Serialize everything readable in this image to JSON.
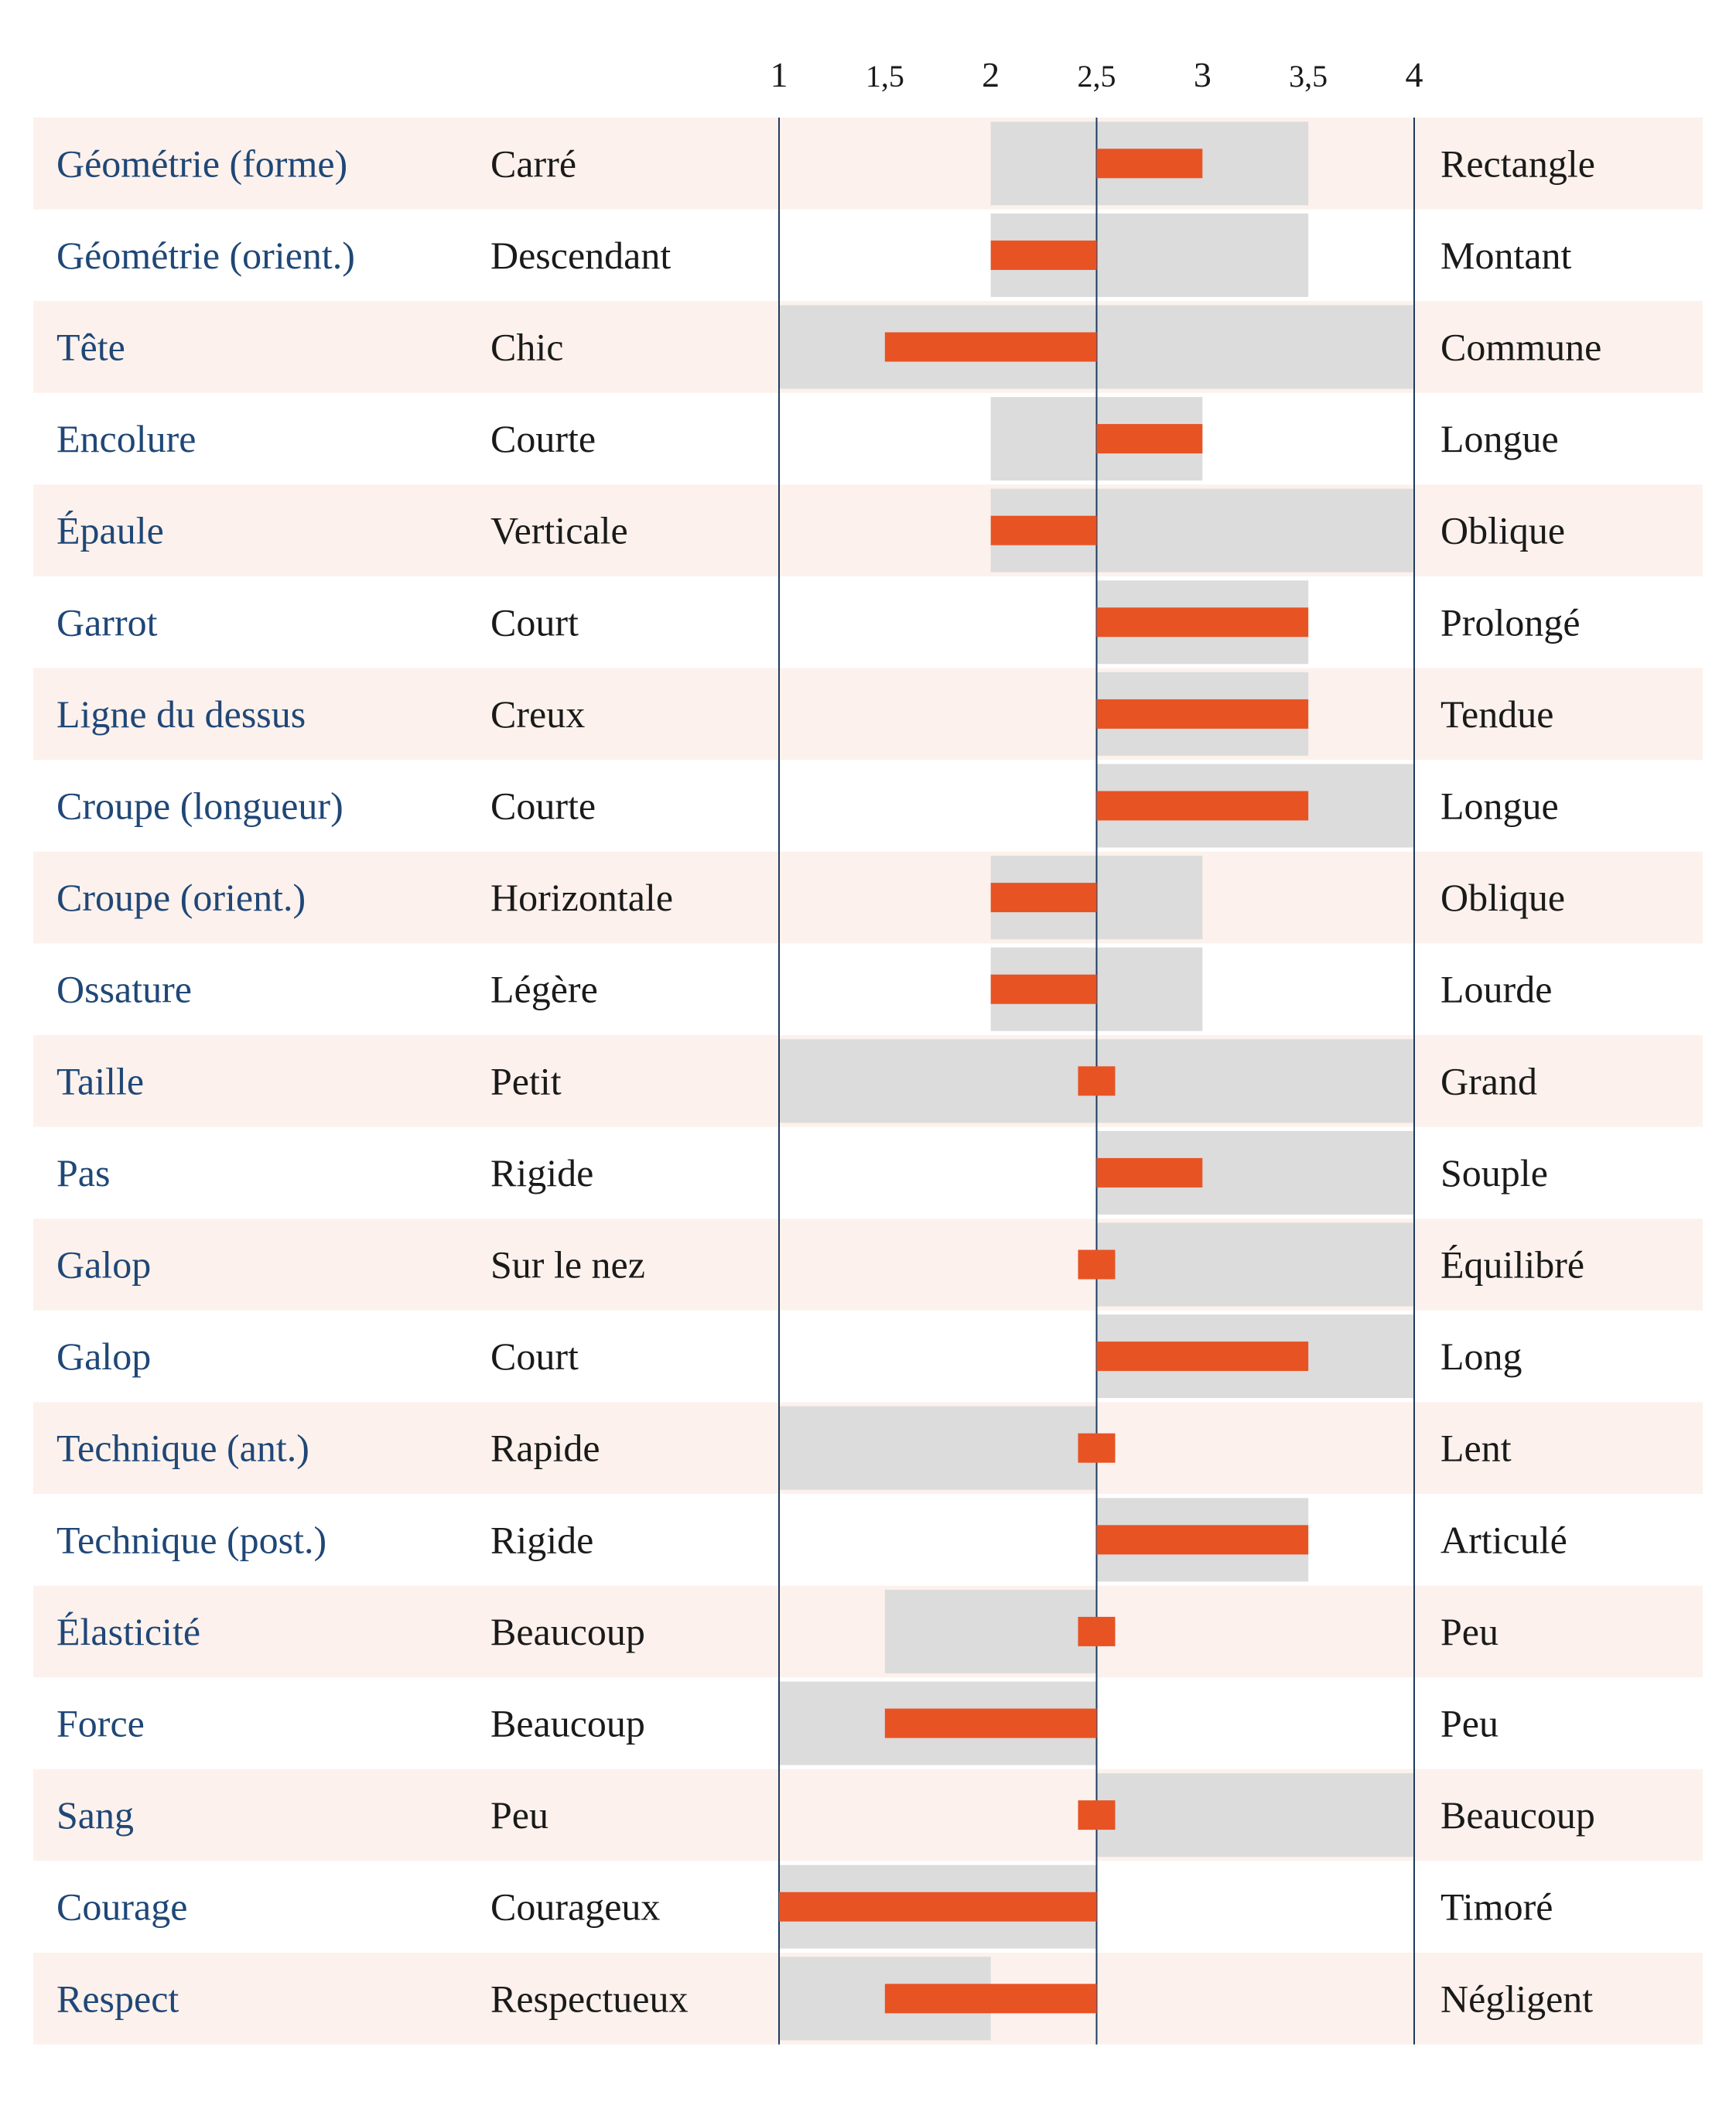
{
  "colors": {
    "row_band": "#fcf1ec",
    "range": "#dcdcdc",
    "marker": "#e85324",
    "axis_line": "#1f3a5f",
    "trait_text": "#1f4777",
    "pole_text": "#1a1a1a"
  },
  "chart_data": {
    "type": "bar",
    "orientation": "horizontal",
    "title": "",
    "xlim": [
      1,
      4
    ],
    "center": 2.5,
    "ticks": [
      {
        "value": 1,
        "label": "1"
      },
      {
        "value": 1.5,
        "label": "1,5"
      },
      {
        "value": 2,
        "label": "2"
      },
      {
        "value": 2.5,
        "label": "2,5"
      },
      {
        "value": 3,
        "label": "3"
      },
      {
        "value": 3.5,
        "label": "3,5"
      },
      {
        "value": 4,
        "label": "4"
      }
    ],
    "rows": [
      {
        "trait": "Géométrie (forme)",
        "low": "Carré",
        "high": "Rectangle",
        "range": [
          2,
          3.5
        ],
        "value": 3
      },
      {
        "trait": "Géométrie (orient.)",
        "low": "Descendant",
        "high": "Montant",
        "range": [
          2,
          3.5
        ],
        "value": 2
      },
      {
        "trait": "Tête",
        "low": "Chic",
        "high": "Commune",
        "range": [
          1,
          4
        ],
        "value": 1.5
      },
      {
        "trait": "Encolure",
        "low": "Courte",
        "high": "Longue",
        "range": [
          2,
          3
        ],
        "value": 3
      },
      {
        "trait": "Épaule",
        "low": "Verticale",
        "high": "Oblique",
        "range": [
          2,
          4
        ],
        "value": 2
      },
      {
        "trait": "Garrot",
        "low": "Court",
        "high": "Prolongé",
        "range": [
          2.5,
          3.5
        ],
        "value": 3.5
      },
      {
        "trait": "Ligne du dessus",
        "low": "Creux",
        "high": "Tendue",
        "range": [
          2.5,
          3.5
        ],
        "value": 3.5
      },
      {
        "trait": "Croupe (longueur)",
        "low": "Courte",
        "high": "Longue",
        "range": [
          2.5,
          4
        ],
        "value": 3.5
      },
      {
        "trait": "Croupe (orient.)",
        "low": "Horizontale",
        "high": "Oblique",
        "range": [
          2,
          3
        ],
        "value": 2
      },
      {
        "trait": "Ossature",
        "low": "Légère",
        "high": "Lourde",
        "range": [
          2,
          3
        ],
        "value": 2
      },
      {
        "trait": "Taille",
        "low": "Petit",
        "high": "Grand",
        "range": [
          1,
          4
        ],
        "value": 2.5
      },
      {
        "trait": "Pas",
        "low": "Rigide",
        "high": "Souple",
        "range": [
          2.5,
          4
        ],
        "value": 3
      },
      {
        "trait": "Galop",
        "low": "Sur le nez",
        "high": "Équilibré",
        "range": [
          2.5,
          4
        ],
        "value": 2.5
      },
      {
        "trait": "Galop",
        "low": "Court",
        "high": "Long",
        "range": [
          2.5,
          4
        ],
        "value": 3.5
      },
      {
        "trait": "Technique (ant.)",
        "low": "Rapide",
        "high": "Lent",
        "range": [
          1,
          2.5
        ],
        "value": 2.5
      },
      {
        "trait": "Technique (post.)",
        "low": "Rigide",
        "high": "Articulé",
        "range": [
          2.5,
          3.5
        ],
        "value": 3.5
      },
      {
        "trait": "Élasticité",
        "low": "Beaucoup",
        "high": "Peu",
        "range": [
          1.5,
          2.5
        ],
        "value": 2.5
      },
      {
        "trait": "Force",
        "low": "Beaucoup",
        "high": "Peu",
        "range": [
          1,
          2.5
        ],
        "value": 1.5
      },
      {
        "trait": "Sang",
        "low": "Peu",
        "high": "Beaucoup",
        "range": [
          2.5,
          4
        ],
        "value": 2.5
      },
      {
        "trait": "Courage",
        "low": "Courageux",
        "high": "Timoré",
        "range": [
          1,
          2.5
        ],
        "value": 1
      },
      {
        "trait": "Respect",
        "low": "Respectueux",
        "high": "Négligent",
        "range": [
          1,
          2
        ],
        "value": 1.5
      }
    ]
  }
}
